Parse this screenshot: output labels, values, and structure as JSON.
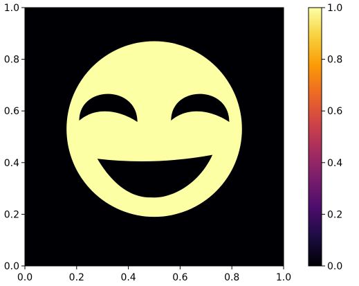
{
  "chart_data": {
    "type": "heatmap",
    "title": "",
    "xlabel": "",
    "ylabel": "",
    "xlim": [
      0.0,
      1.0
    ],
    "ylim": [
      0.0,
      1.0
    ],
    "x_tick_labels": [
      "0.0",
      "0.2",
      "0.4",
      "0.6",
      "0.8",
      "1.0"
    ],
    "y_tick_labels": [
      "0.0",
      "0.2",
      "0.4",
      "0.6",
      "0.8",
      "1.0"
    ],
    "x_ticks": [
      0.0,
      0.2,
      0.4,
      0.6,
      0.8,
      1.0
    ],
    "y_ticks": [
      0.0,
      0.2,
      0.4,
      0.6,
      0.8,
      1.0
    ],
    "grid": false,
    "colormap": "inferno",
    "value_range": [
      0.0,
      1.0
    ],
    "background_value": 0.0,
    "shape_value": 1.0,
    "image_content": "binary smiley face: filled circle (value 1.0) with two crescent closed eyes and an open smiling mouth (value 0.0) on a 0.0 background",
    "face": {
      "center": [
        0.5,
        0.53
      ],
      "radius": 0.34
    },
    "colorbar": {
      "position": "right",
      "range": [
        0.0,
        1.0
      ],
      "tick_labels": [
        "0.0",
        "0.2",
        "0.4",
        "0.6",
        "0.8",
        "1.0"
      ],
      "ticks": [
        0.0,
        0.2,
        0.4,
        0.6,
        0.8,
        1.0
      ],
      "colors": [
        "#000004",
        "#1b0c41",
        "#4a0c6b",
        "#781c6d",
        "#a52c60",
        "#cf4446",
        "#ed6925",
        "#fb9b06",
        "#f7d13d",
        "#fcffa4"
      ]
    },
    "colors": {
      "low": "#000004",
      "high": "#fcffa4"
    }
  }
}
